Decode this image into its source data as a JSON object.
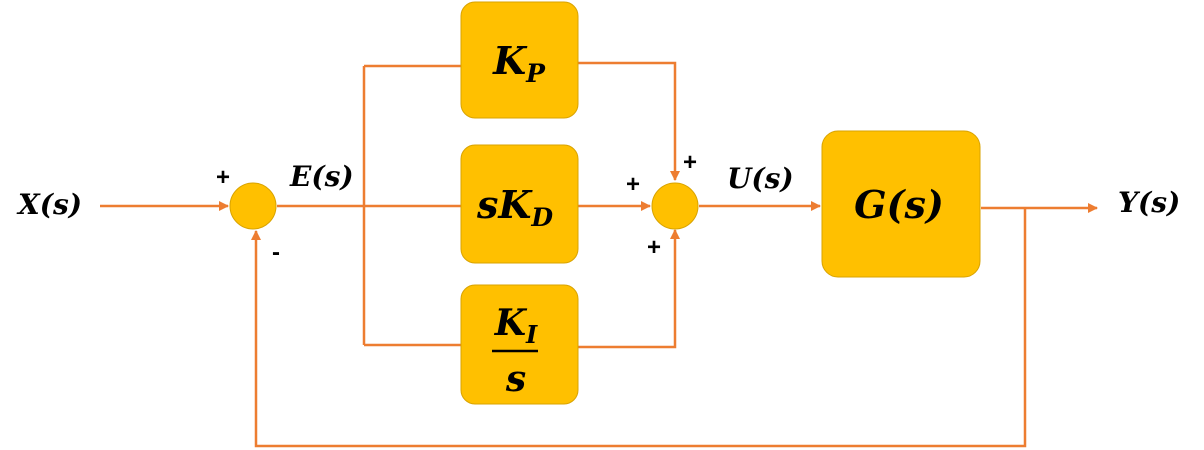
{
  "colors": {
    "block_fill": "#ffc000",
    "block_stroke": "#d9a300",
    "wire": "#ed7d31"
  },
  "signals": {
    "input": "X(s)",
    "error": "E(s)",
    "control": "U(s)",
    "output": "Y(s)"
  },
  "blocks": {
    "proportional": {
      "base": "K",
      "sub": "P"
    },
    "derivative": {
      "prefix": "s",
      "base": "K",
      "sub": "D"
    },
    "integral": {
      "base": "K",
      "sub": "I",
      "denominator": "s"
    },
    "plant": "G(s)"
  },
  "signs": {
    "sum1_in": "+",
    "sum1_feedback": "-",
    "sum2_top": "+",
    "sum2_left": "+",
    "sum2_bottom": "+"
  }
}
